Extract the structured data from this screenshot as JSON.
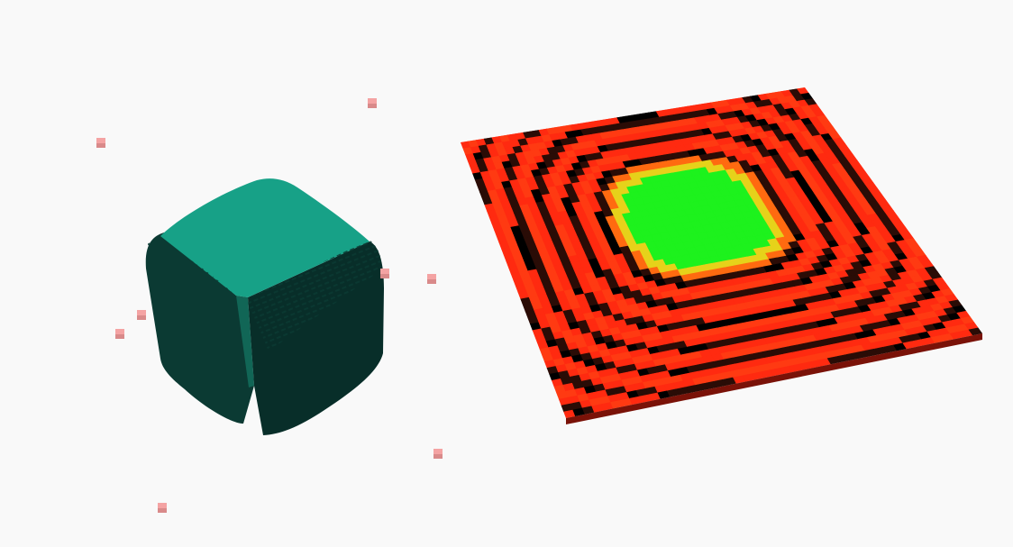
{
  "scene": {
    "background": "#f9f9f9",
    "voxel_cube": {
      "top_color": "#17a187",
      "left_color": "#0b3a33",
      "right_color": "#0a302b",
      "mid_color": "#17917a"
    },
    "marker_color": "#f4a3a3",
    "marker_shade": "#d98a8a",
    "heightmap": {
      "grid": 44,
      "rings": 6,
      "colors": {
        "center": "#1df21d",
        "yellow": "#e6d21a",
        "orange": "#ff6a10",
        "red": "#ff2a10",
        "dark": "#2a0c06",
        "black": "#000000",
        "edge": "#8a1a10"
      }
    },
    "markers_count": 8
  }
}
